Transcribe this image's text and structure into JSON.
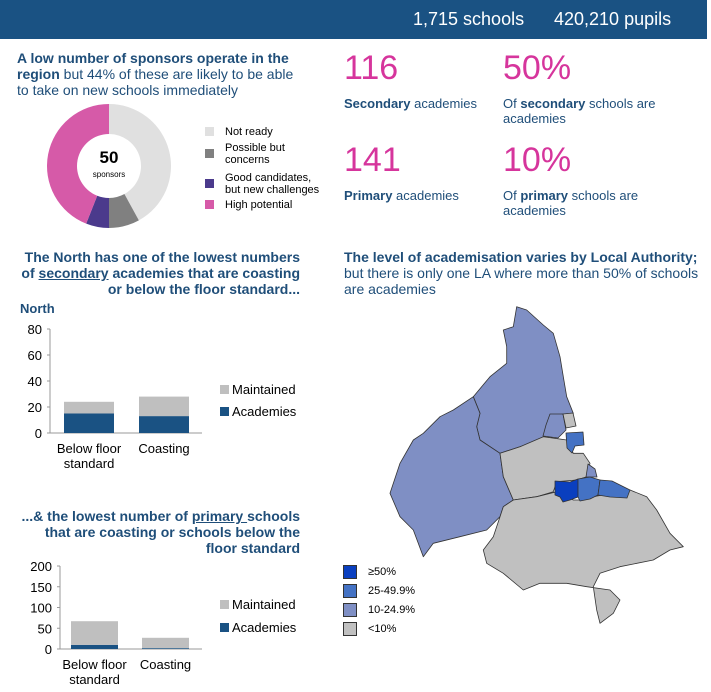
{
  "header": {
    "schools": "1,715 schools",
    "pupils": "420,210 pupils"
  },
  "sponsors": {
    "title_bold": "A low number of sponsors operate in the region",
    "title_rest": " but 44% of these are likely to be able to take on new schools immediately",
    "center_value": "50",
    "center_label": "sponsors"
  },
  "stats": [
    {
      "value": "116",
      "label_bold": "Secondary",
      "label_rest": " academies"
    },
    {
      "value": "50%",
      "label_pre": "Of ",
      "label_bold": "secondary",
      "label_rest": " schools are academies"
    },
    {
      "value": "141",
      "label_bold": "Primary",
      "label_rest": " academies"
    },
    {
      "value": "10%",
      "label_pre": "Of ",
      "label_bold": "primary",
      "label_rest": " schools are academies"
    }
  ],
  "secondary_heading": {
    "pre": "The North has one of the lowest numbers of ",
    "underlined": "secondary",
    "post": " academies that are coasting or below the floor standard..."
  },
  "primary_heading": {
    "pre": "...& the lowest number of ",
    "underlined": "primary ",
    "post": "schools that are coasting or schools below the floor standard"
  },
  "map": {
    "title_bold": "The level of academisation varies by Local Authority;",
    "title_rest": " but there is only one LA where more than 50% of schools are academies",
    "legend": [
      {
        "label": "≥50%",
        "color": "#0a3fbf"
      },
      {
        "label": "25-49.9%",
        "color": "#4472c4"
      },
      {
        "label": "10-24.9%",
        "color": "#7f8fc4"
      },
      {
        "label": "<10%",
        "color": "#c0c0c0"
      }
    ]
  },
  "chart_data": [
    {
      "type": "pie",
      "title": "Sponsors",
      "total_label": "50 sponsors",
      "slices": [
        {
          "label": "Not ready",
          "value": 21,
          "color": "#e0e0e0"
        },
        {
          "label": "Possible but concerns",
          "value": 4,
          "color": "#808080"
        },
        {
          "label": "Good candidates, but new challenges",
          "value": 3,
          "color": "#4b3a8c"
        },
        {
          "label": "High potential",
          "value": 22,
          "color": "#d65aa8"
        }
      ]
    },
    {
      "type": "bar",
      "stacked": true,
      "title": "North",
      "categories": [
        "Below floor standard",
        "Coasting"
      ],
      "ylim": [
        0,
        80
      ],
      "yticks": [
        "80",
        "60",
        "40",
        "20",
        "0"
      ],
      "series": [
        {
          "name": "Maintained",
          "values": [
            9,
            15
          ],
          "color": "#bfbfbf"
        },
        {
          "name": "Academies",
          "values": [
            15,
            13
          ],
          "color": "#1a5283"
        }
      ]
    },
    {
      "type": "bar",
      "stacked": true,
      "title": "",
      "categories": [
        "Below floor standard",
        "Coasting"
      ],
      "ylim": [
        0,
        200
      ],
      "yticks": [
        "200",
        "150",
        "100",
        "50",
        "0"
      ],
      "series": [
        {
          "name": "Maintained",
          "values": [
            57,
            25
          ],
          "color": "#bfbfbf"
        },
        {
          "name": "Academies",
          "values": [
            10,
            2
          ],
          "color": "#1a5283"
        }
      ]
    }
  ]
}
